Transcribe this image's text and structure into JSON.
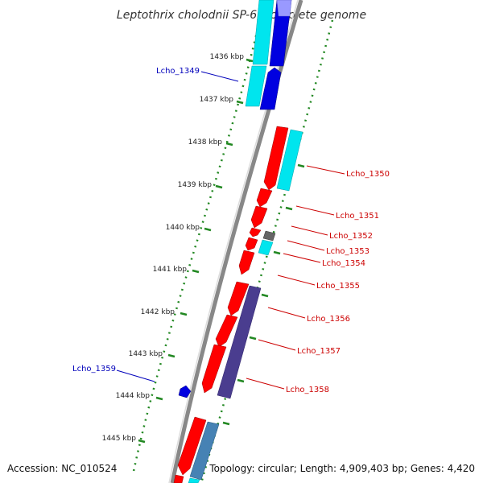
{
  "title": "Leptothrix cholodnii SP-6, complete genome",
  "footer": {
    "accession": "Accession: NC_010524",
    "topology": "Topology: circular; Length: 4,909,403 bp; Genes: 4,420"
  },
  "colors": {
    "forward_label": "#0000bb",
    "reverse_label": "#cc0000",
    "backbone": "#888888",
    "tick": "#228822"
  },
  "ticks": [
    "1436 kbp",
    "1437 kbp",
    "1438 kbp",
    "1439 kbp",
    "1440 kbp",
    "1441 kbp",
    "1442 kbp",
    "1443 kbp",
    "1444 kbp",
    "1445 kbp"
  ],
  "genes": [
    {
      "label": "Lcho_1349",
      "strand": "forward"
    },
    {
      "label": "Lcho_1350",
      "strand": "reverse"
    },
    {
      "label": "Lcho_1351",
      "strand": "reverse"
    },
    {
      "label": "Lcho_1352",
      "strand": "reverse"
    },
    {
      "label": "Lcho_1353",
      "strand": "reverse"
    },
    {
      "label": "Lcho_1354",
      "strand": "reverse"
    },
    {
      "label": "Lcho_1355",
      "strand": "reverse"
    },
    {
      "label": "Lcho_1356",
      "strand": "reverse"
    },
    {
      "label": "Lcho_1357",
      "strand": "reverse"
    },
    {
      "label": "Lcho_1358",
      "strand": "reverse"
    },
    {
      "label": "Lcho_1359",
      "strand": "forward"
    }
  ]
}
